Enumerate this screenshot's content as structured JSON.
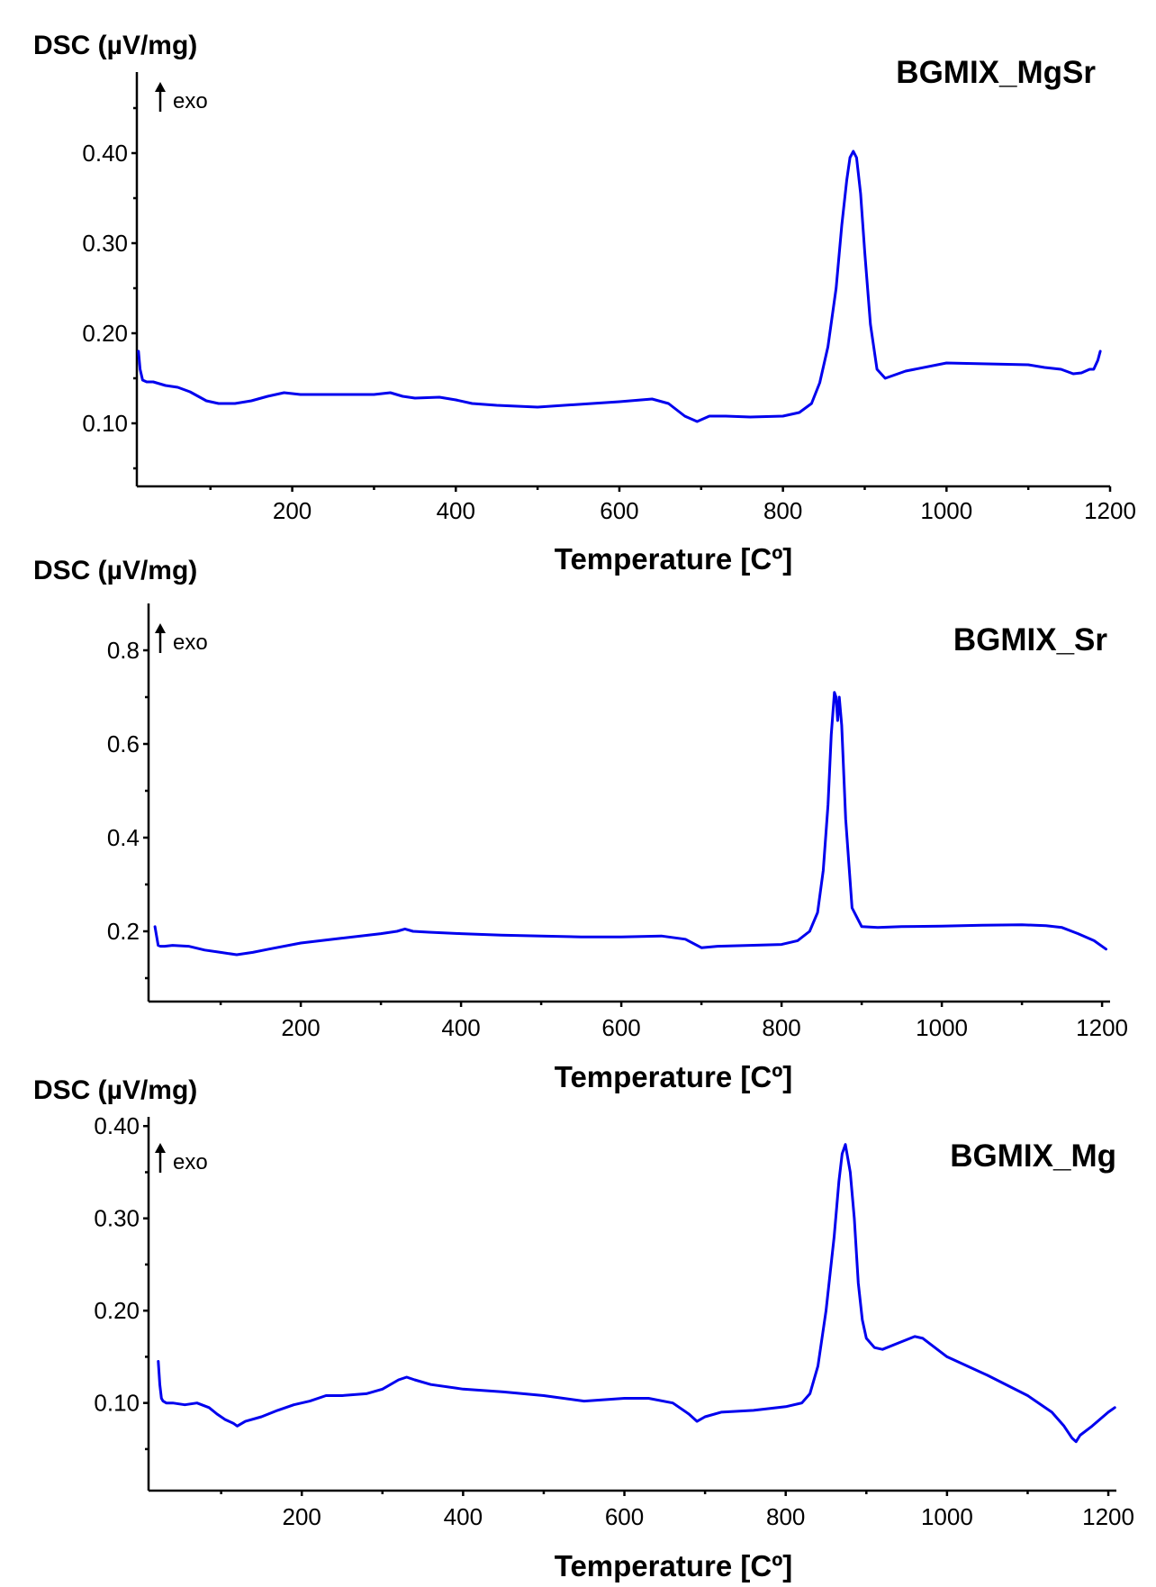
{
  "chart_data": [
    {
      "type": "line",
      "title": "BGMIX_MgSr",
      "ylabel": "DSC (µV/mg)",
      "xlabel": "Temperature [Cº]",
      "annotation": "exo",
      "xlim": [
        10,
        1200
      ],
      "ylim": [
        0.03,
        0.49
      ],
      "xticks": [
        200,
        400,
        600,
        800,
        1000,
        1200
      ],
      "yticks": [
        0.1,
        0.2,
        0.3,
        0.4
      ],
      "yticklabels": [
        "0.10",
        "0.20",
        "0.30",
        "0.40"
      ],
      "y_minor_ticks": [
        0.05,
        0.15,
        0.25,
        0.35,
        0.45
      ],
      "color": "#0000ee",
      "series": [
        {
          "x": [
            12,
            14,
            17,
            22,
            30,
            45,
            60,
            75,
            85,
            95,
            110,
            130,
            150,
            170,
            190,
            210,
            250,
            300,
            320,
            335,
            350,
            380,
            400,
            420,
            450,
            500,
            550,
            600,
            640,
            660,
            680,
            695,
            710,
            730,
            760,
            800,
            820,
            835,
            845,
            855,
            865,
            872,
            878,
            882,
            886,
            890,
            895,
            900,
            907,
            915,
            925,
            950,
            1000,
            1050,
            1100,
            1120,
            1140,
            1155,
            1165,
            1175,
            1180,
            1185,
            1188
          ],
          "y": [
            0.18,
            0.16,
            0.148,
            0.146,
            0.146,
            0.142,
            0.14,
            0.135,
            0.13,
            0.125,
            0.122,
            0.122,
            0.125,
            0.13,
            0.134,
            0.132,
            0.132,
            0.132,
            0.134,
            0.13,
            0.128,
            0.129,
            0.126,
            0.122,
            0.12,
            0.118,
            0.121,
            0.124,
            0.127,
            0.122,
            0.108,
            0.102,
            0.108,
            0.108,
            0.107,
            0.108,
            0.112,
            0.122,
            0.145,
            0.185,
            0.25,
            0.32,
            0.37,
            0.395,
            0.402,
            0.395,
            0.355,
            0.29,
            0.21,
            0.16,
            0.15,
            0.158,
            0.167,
            0.166,
            0.165,
            0.162,
            0.16,
            0.155,
            0.156,
            0.16,
            0.16,
            0.17,
            0.18
          ]
        }
      ]
    },
    {
      "type": "line",
      "title": "BGMIX_Sr",
      "ylabel": "DSC (µV/mg)",
      "xlabel": "Temperature [Cº]",
      "annotation": "exo",
      "xlim": [
        10,
        1210
      ],
      "ylim": [
        0.05,
        0.9
      ],
      "xticks": [
        200,
        400,
        600,
        800,
        1000,
        1200
      ],
      "yticks": [
        0.2,
        0.4,
        0.6,
        0.8
      ],
      "yticklabels": [
        "0.2",
        "0.4",
        "0.6",
        "0.8"
      ],
      "y_minor_ticks": [
        0.1,
        0.3,
        0.5,
        0.7
      ],
      "color": "#0000ee",
      "series": [
        {
          "x": [
            18,
            20,
            22,
            25,
            30,
            40,
            60,
            80,
            100,
            120,
            140,
            160,
            200,
            250,
            300,
            320,
            330,
            340,
            360,
            400,
            450,
            500,
            550,
            600,
            650,
            680,
            700,
            720,
            760,
            800,
            820,
            835,
            845,
            852,
            858,
            862,
            866,
            868,
            870,
            872,
            875,
            880,
            888,
            900,
            920,
            950,
            1000,
            1050,
            1100,
            1130,
            1150,
            1170,
            1190,
            1205
          ],
          "y": [
            0.21,
            0.19,
            0.17,
            0.168,
            0.168,
            0.17,
            0.168,
            0.16,
            0.155,
            0.15,
            0.155,
            0.162,
            0.175,
            0.185,
            0.195,
            0.2,
            0.205,
            0.2,
            0.198,
            0.195,
            0.192,
            0.19,
            0.188,
            0.188,
            0.19,
            0.183,
            0.165,
            0.168,
            0.17,
            0.172,
            0.18,
            0.2,
            0.24,
            0.33,
            0.47,
            0.62,
            0.71,
            0.7,
            0.65,
            0.7,
            0.64,
            0.44,
            0.25,
            0.21,
            0.208,
            0.21,
            0.211,
            0.213,
            0.214,
            0.212,
            0.208,
            0.195,
            0.18,
            0.162
          ]
        }
      ]
    },
    {
      "type": "line",
      "title": "BGMIX_Mg",
      "ylabel": "DSC (µV/mg)",
      "xlabel": "Temperature [Cº]",
      "annotation": "exo",
      "xlim": [
        10,
        1210
      ],
      "ylim": [
        0.005,
        0.41
      ],
      "xticks": [
        200,
        400,
        600,
        800,
        1000,
        1200
      ],
      "yticks": [
        0.1,
        0.2,
        0.3,
        0.4
      ],
      "yticklabels": [
        "0.10",
        "0.20",
        "0.30",
        "0.40"
      ],
      "y_minor_ticks": [
        0.05,
        0.15,
        0.25,
        0.35
      ],
      "color": "#0000ee",
      "series": [
        {
          "x": [
            22,
            24,
            26,
            28,
            32,
            40,
            55,
            70,
            85,
            95,
            105,
            115,
            120,
            130,
            150,
            170,
            190,
            210,
            230,
            250,
            280,
            300,
            320,
            330,
            340,
            360,
            400,
            450,
            500,
            550,
            600,
            630,
            660,
            680,
            690,
            700,
            720,
            760,
            800,
            820,
            830,
            840,
            850,
            860,
            866,
            870,
            874,
            880,
            885,
            890,
            895,
            900,
            910,
            920,
            940,
            960,
            970,
            1000,
            1050,
            1100,
            1130,
            1145,
            1155,
            1160,
            1165,
            1180,
            1200,
            1208
          ],
          "y": [
            0.145,
            0.12,
            0.105,
            0.102,
            0.1,
            0.1,
            0.098,
            0.1,
            0.095,
            0.088,
            0.082,
            0.078,
            0.075,
            0.08,
            0.085,
            0.092,
            0.098,
            0.102,
            0.108,
            0.108,
            0.11,
            0.115,
            0.125,
            0.128,
            0.125,
            0.12,
            0.115,
            0.112,
            0.108,
            0.102,
            0.105,
            0.105,
            0.1,
            0.088,
            0.08,
            0.085,
            0.09,
            0.092,
            0.096,
            0.1,
            0.11,
            0.14,
            0.2,
            0.28,
            0.34,
            0.37,
            0.38,
            0.35,
            0.3,
            0.23,
            0.19,
            0.17,
            0.16,
            0.158,
            0.165,
            0.172,
            0.17,
            0.15,
            0.13,
            0.108,
            0.09,
            0.075,
            0.062,
            0.058,
            0.065,
            0.075,
            0.09,
            0.095
          ]
        }
      ]
    }
  ]
}
